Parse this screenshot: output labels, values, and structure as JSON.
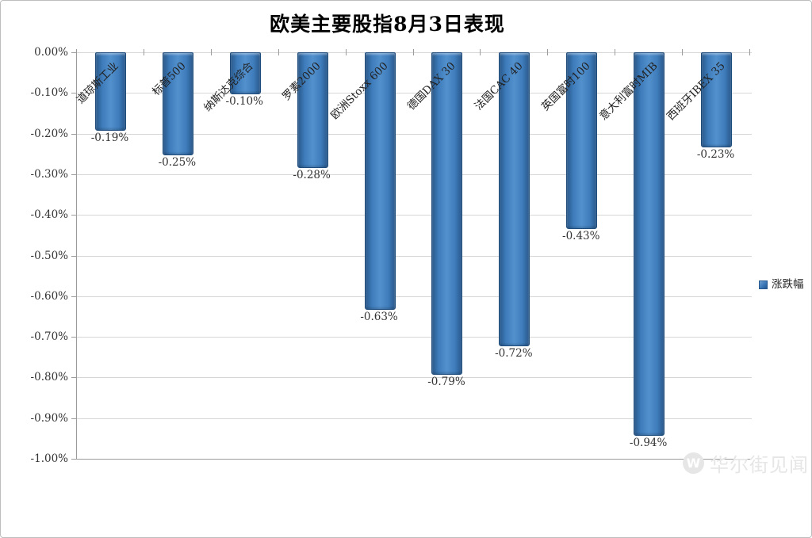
{
  "title": "欧美主要股指8月3日表现",
  "legend": {
    "label": "涨跌幅"
  },
  "watermark": {
    "logo_letter": "W",
    "text": "华尔街见闻"
  },
  "colors": {
    "bar_edge": "#29598c",
    "bar_mid": "#3e7cbb",
    "bar_center": "#5290cd",
    "bar_border": "#1e4c7c",
    "gridline": "#d6d6d6",
    "axis": "#9b9b9b",
    "text": "#333333"
  },
  "chart_data": {
    "type": "bar",
    "title": "欧美主要股指8月3日表现",
    "series_name": "涨跌幅",
    "categories": [
      "道琼斯工业",
      "标普500",
      "纳斯达克综合",
      "罗素2000",
      "欧洲Stoxx 600",
      "德国DAX 30",
      "法国CAC 40",
      "英国富时100",
      "意大利富时MIB",
      "西班牙IBEX 35"
    ],
    "values": [
      -0.19,
      -0.25,
      -0.1,
      -0.28,
      -0.63,
      -0.79,
      -0.72,
      -0.43,
      -0.94,
      -0.23
    ],
    "value_labels": [
      "-0.19%",
      "-0.25%",
      "-0.10%",
      "-0.28%",
      "-0.63%",
      "-0.79%",
      "-0.72%",
      "-0.43%",
      "-0.94%",
      "-0.23%"
    ],
    "xlabel": "",
    "ylabel": "",
    "ylim": [
      -1.0,
      0.0
    ],
    "y_ticks": [
      "0.00%",
      "-0.10%",
      "-0.20%",
      "-0.30%",
      "-0.40%",
      "-0.50%",
      "-0.60%",
      "-0.70%",
      "-0.80%",
      "-0.90%",
      "-1.00%"
    ],
    "grid": true,
    "legend_position": "right",
    "bar_orientation": "vertical-negative"
  }
}
